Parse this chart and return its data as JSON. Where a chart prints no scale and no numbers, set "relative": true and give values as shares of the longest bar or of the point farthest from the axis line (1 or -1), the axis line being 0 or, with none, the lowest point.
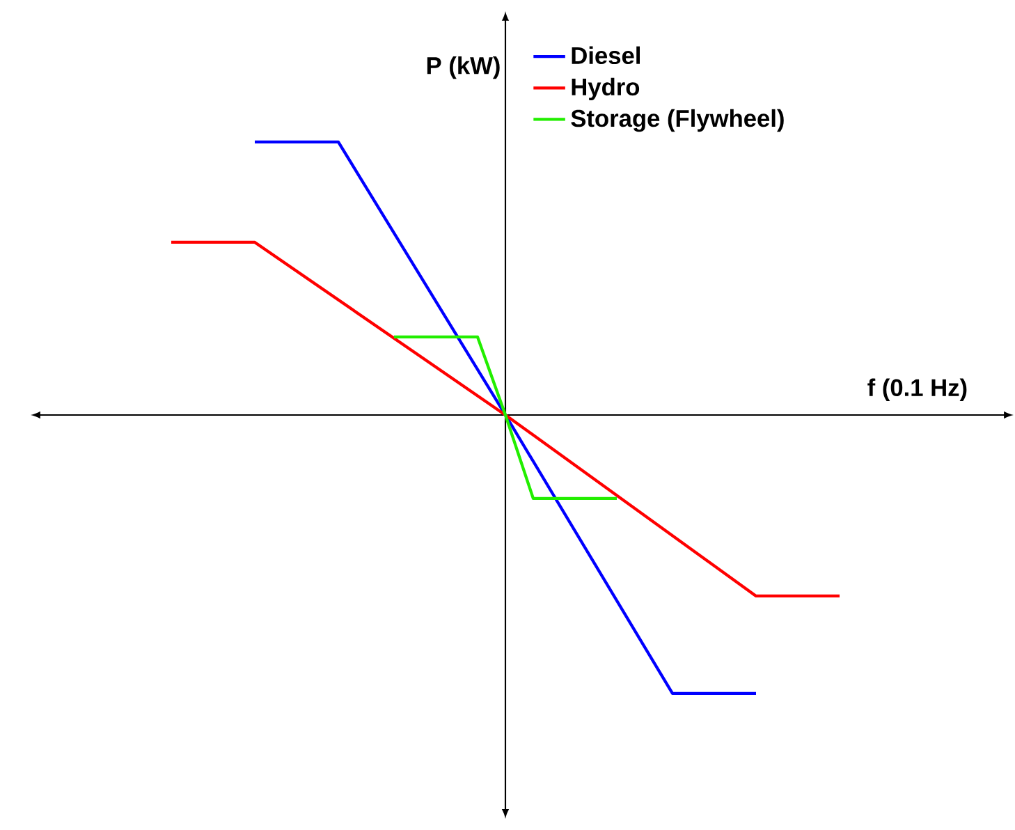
{
  "chart_data": {
    "type": "line",
    "relative": true,
    "xlabel": "f (0.1 Hz)",
    "ylabel": "P (kW)",
    "legend": "top",
    "marker": "none",
    "line_style": "solid",
    "categories": [
      null,
      null,
      null,
      null,
      null,
      null,
      null,
      null,
      null,
      null,
      null,
      null,
      null,
      null,
      null,
      null,
      null,
      null,
      null,
      null,
      null,
      null,
      null,
      null,
      null
    ],
    "series": [
      {
        "name": "Diesel",
        "color": "#0000ff",
        "values": [
          null,
          null,
          null,
          0.98,
          null,
          null,
          0.98,
          null,
          null,
          null,
          null,
          null,
          0,
          null,
          null,
          null,
          null,
          null,
          -1,
          null,
          null,
          -1,
          null,
          null,
          null
        ]
      },
      {
        "name": "Hydro",
        "color": "#ff0000",
        "values": [
          0.62,
          null,
          null,
          0.62,
          null,
          null,
          null,
          null,
          null,
          null,
          null,
          null,
          0,
          null,
          null,
          null,
          null,
          null,
          null,
          null,
          null,
          -0.65,
          null,
          null,
          -0.65
        ]
      },
      {
        "name": "Storage (Flywheel)",
        "color": "#22ee00",
        "values": [
          null,
          null,
          null,
          null,
          null,
          null,
          null,
          null,
          0.28,
          null,
          null,
          0.28,
          0,
          -0.3,
          null,
          null,
          -0.3,
          null,
          null,
          null,
          null,
          null,
          null,
          null,
          null
        ]
      }
    ]
  }
}
